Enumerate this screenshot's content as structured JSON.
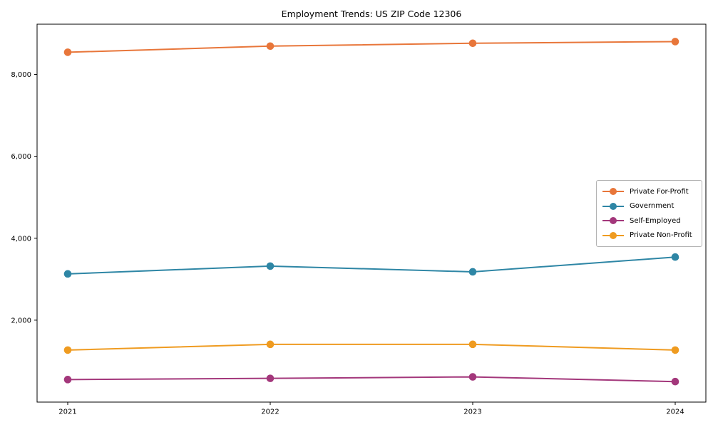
{
  "chart_data": {
    "type": "line",
    "title": "Employment Trends: US ZIP Code 12306",
    "xlabel": "",
    "ylabel": "",
    "x": [
      "2021",
      "2022",
      "2023",
      "2024"
    ],
    "series": [
      {
        "name": "Private For-Profit",
        "color": "#E8763A",
        "values": [
          8540,
          8690,
          8760,
          8800
        ]
      },
      {
        "name": "Government",
        "color": "#2E86A5",
        "values": [
          3130,
          3320,
          3180,
          3540
        ]
      },
      {
        "name": "Self-Employed",
        "color": "#A3377B",
        "values": [
          550,
          580,
          615,
          500
        ]
      },
      {
        "name": "Private Non-Profit",
        "color": "#EF9B20",
        "values": [
          1270,
          1410,
          1410,
          1270
        ]
      }
    ],
    "ylim": [
      0,
      9225
    ],
    "yticks": [
      2000,
      4000,
      6000,
      8000
    ],
    "ytick_labels": [
      "2,000",
      "4,000",
      "6,000",
      "8,000"
    ],
    "grid": false,
    "legend_position": "center right",
    "axis_color": "#000000",
    "background_color": "#FFFFFF"
  }
}
